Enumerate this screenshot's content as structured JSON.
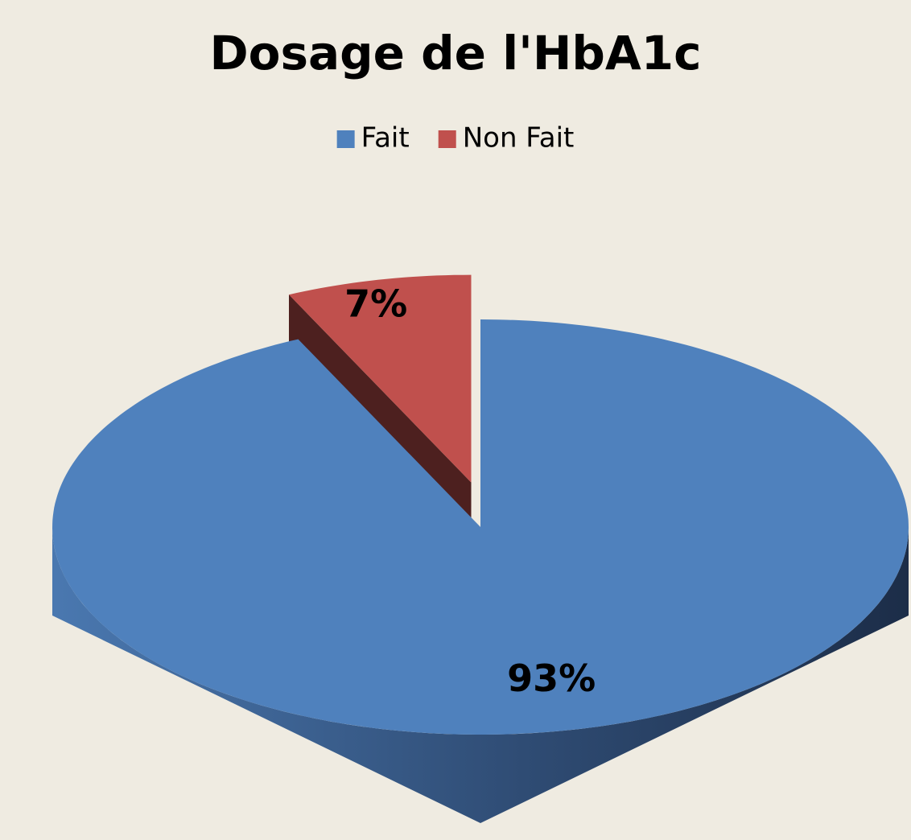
{
  "chart_data": {
    "type": "pie",
    "title": "Dosage de l'HbA1c",
    "categories": [
      "Fait",
      "Non Fait"
    ],
    "values": [
      93,
      7
    ],
    "value_labels": [
      "93%",
      "7%"
    ],
    "colors": [
      "#4f81bd",
      "#c0504d"
    ],
    "legend": "top"
  }
}
